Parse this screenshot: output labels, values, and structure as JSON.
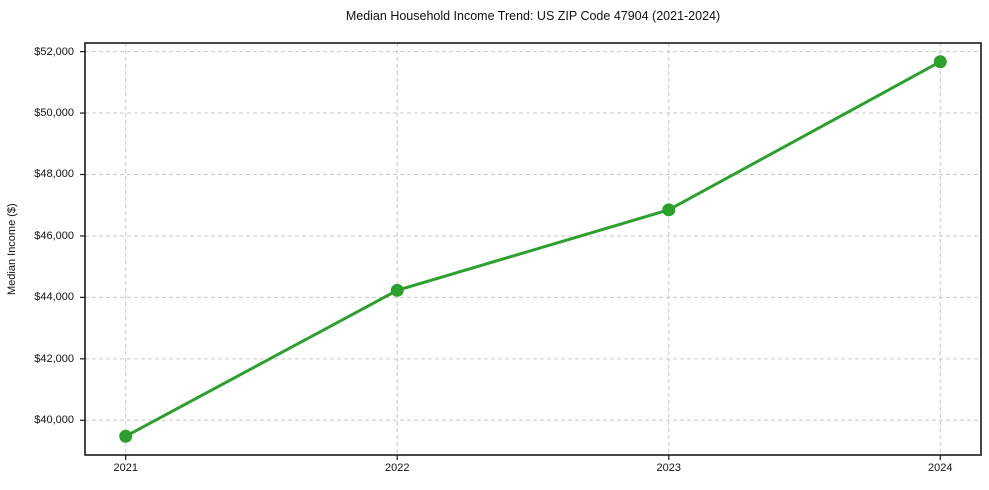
{
  "figure": {
    "background": "#ffffff"
  },
  "chart_data": {
    "type": "line",
    "title": "Median Household Income Trend: US ZIP Code 47904 (2021-2024)",
    "xlabel": "",
    "ylabel": "Median Income ($)",
    "categories": [
      2021,
      2022,
      2023,
      2024
    ],
    "xtick_labels": [
      "2021",
      "2022",
      "2023",
      "2024"
    ],
    "values": [
      39480,
      44230,
      46850,
      51670
    ],
    "yticks": [
      40000,
      42000,
      44000,
      46000,
      48000,
      50000,
      52000
    ],
    "ytick_labels": [
      "$40,000",
      "$42,000",
      "$44,000",
      "$46,000",
      "$48,000",
      "$50,000",
      "$52,000"
    ],
    "xlim": [
      2020.85,
      2024.15
    ],
    "ylim": [
      38870,
      52280
    ],
    "grid": true,
    "grid_style": "dashed",
    "legend_position": "none",
    "colors": {
      "line": "#2ca02c",
      "marker": "#2ca02c",
      "grid": "#c9c9c9",
      "spine": "#1a1a1a",
      "tick": "#1a1a1a"
    },
    "line_width": 3,
    "marker_radius": 6.5
  }
}
